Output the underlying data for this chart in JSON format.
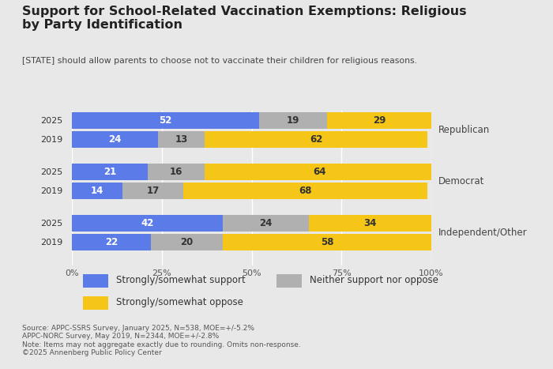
{
  "title": "Support for School-Related Vaccination Exemptions: Religious\nby Party Identification",
  "subtitle": "[STATE] should allow parents to choose not to vaccinate their children for religious reasons.",
  "background_color": "#e8e8e8",
  "bar_groups": [
    {
      "party": "Republican",
      "rows": [
        {
          "year": "2025",
          "support": 52,
          "neither": 19,
          "oppose": 29
        },
        {
          "year": "2019",
          "support": 24,
          "neither": 13,
          "oppose": 62
        }
      ]
    },
    {
      "party": "Democrat",
      "rows": [
        {
          "year": "2025",
          "support": 21,
          "neither": 16,
          "oppose": 64
        },
        {
          "year": "2019",
          "support": 14,
          "neither": 17,
          "oppose": 68
        }
      ]
    },
    {
      "party": "Independent/Other",
      "rows": [
        {
          "year": "2025",
          "support": 42,
          "neither": 24,
          "oppose": 34
        },
        {
          "year": "2019",
          "support": 22,
          "neither": 20,
          "oppose": 58
        }
      ]
    }
  ],
  "colors": {
    "support": "#5b7be8",
    "neither": "#b0b0b0",
    "oppose": "#f5c518"
  },
  "legend_labels": {
    "support": "Strongly/somewhat support",
    "neither": "Neither support nor oppose",
    "oppose": "Strongly/somewhat oppose"
  },
  "footnote": "Source: APPC-SSRS Survey, January 2025, N=538, MOE=+/-5.2%\nAPPC-NORC Survey, May 2019, N=2344, MOE=+/-2.8%\nNote: Items may not aggregate exactly due to rounding. Omits non-response.\n©2025 Annenberg Public Policy Center"
}
